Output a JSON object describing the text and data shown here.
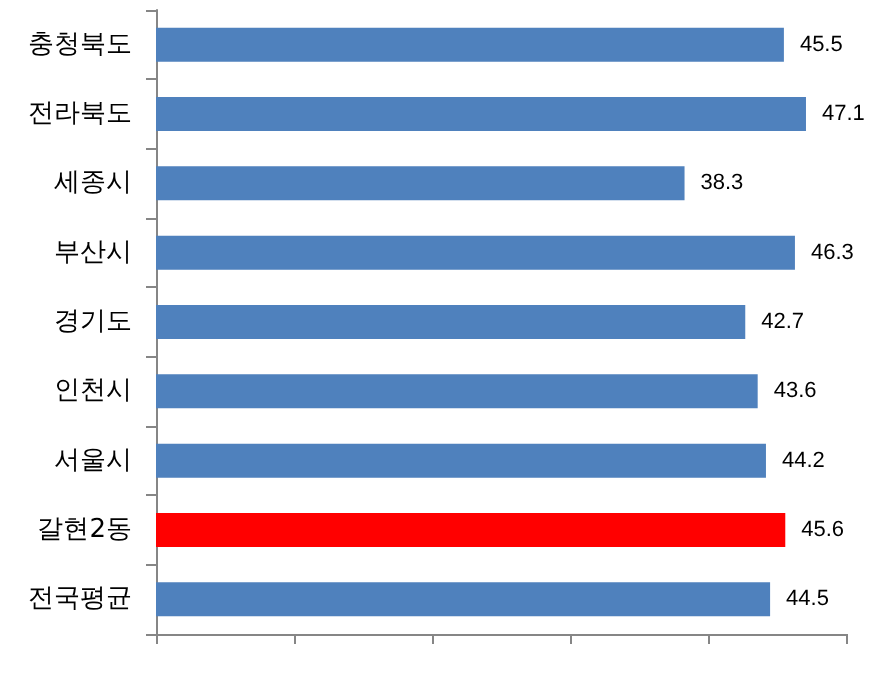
{
  "chart_data": {
    "type": "bar",
    "orientation": "horizontal",
    "categories": [
      "충청북도",
      "전라북도",
      "세종시",
      "부산시",
      "경기도",
      "인천시",
      "서울시",
      "갈현2동",
      "전국평균"
    ],
    "values": [
      45.5,
      47.1,
      38.3,
      46.3,
      42.7,
      43.6,
      44.2,
      45.6,
      44.5
    ],
    "colors": [
      "#4f81bd",
      "#4f81bd",
      "#4f81bd",
      "#4f81bd",
      "#4f81bd",
      "#4f81bd",
      "#4f81bd",
      "#ff0000",
      "#4f81bd"
    ],
    "xlim": [
      0,
      50
    ],
    "xticks": [
      {
        "value": 0,
        "label": null
      },
      {
        "value": 10,
        "label": null
      },
      {
        "value": 20,
        "label": null
      },
      {
        "value": 30,
        "label": null
      },
      {
        "value": 40,
        "label": null
      },
      {
        "value": 50,
        "label": null
      }
    ],
    "tick_labels": "y",
    "data_labels": true,
    "grid": false
  }
}
